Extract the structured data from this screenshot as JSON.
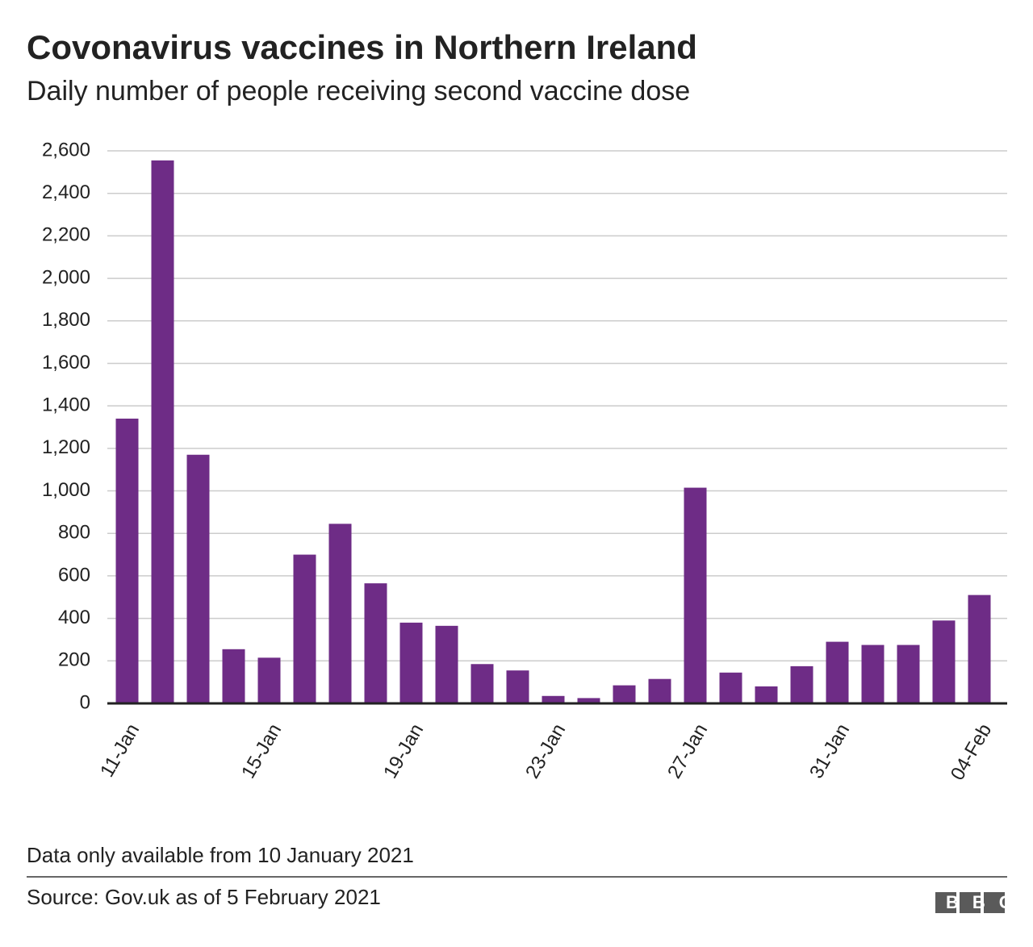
{
  "chart_data": {
    "type": "bar",
    "title": "Covonavirus vaccines in Northern Ireland",
    "subtitle": "Daily number of people receiving second vaccine dose",
    "categories": [
      "11-Jan",
      null,
      null,
      null,
      "15-Jan",
      null,
      null,
      null,
      "19-Jan",
      null,
      null,
      null,
      "23-Jan",
      null,
      null,
      null,
      "27-Jan",
      null,
      null,
      null,
      "31-Jan",
      null,
      null,
      null,
      "04-Feb"
    ],
    "values": [
      1340,
      2555,
      1170,
      255,
      215,
      700,
      845,
      565,
      380,
      365,
      185,
      155,
      35,
      25,
      85,
      115,
      1015,
      145,
      80,
      175,
      290,
      275,
      275,
      390,
      510
    ],
    "color": "#6e2c86",
    "ylim": [
      0,
      2600
    ],
    "yticks": [
      0,
      200,
      400,
      600,
      800,
      {
        "value": 1000,
        "label": "1,000"
      },
      {
        "value": 1200,
        "label": "1,200"
      },
      {
        "value": 1400,
        "label": "1,400"
      },
      {
        "value": 1600,
        "label": "1,600"
      },
      {
        "value": 1800,
        "label": "1,800"
      },
      {
        "value": 2000,
        "label": "2,000"
      },
      {
        "value": 2200,
        "label": "2,200"
      },
      {
        "value": 2400,
        "label": "2,400"
      },
      {
        "value": 2600,
        "label": "2,600"
      }
    ],
    "grid": true,
    "note": "Data only available from 10 January 2021",
    "source": "Source: Gov.uk as of 5 February 2021",
    "logo": "BBC"
  }
}
